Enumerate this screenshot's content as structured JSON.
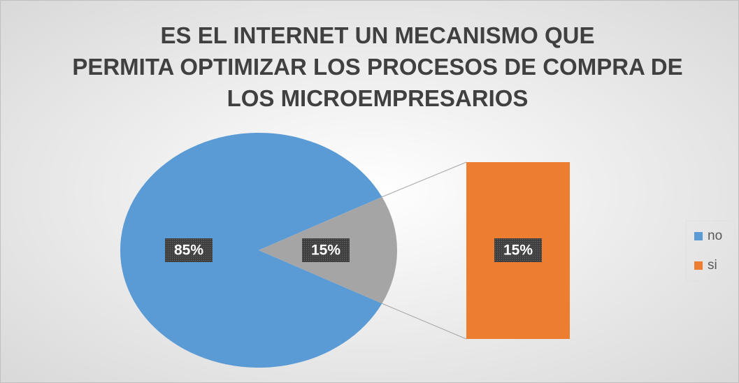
{
  "chart_data": {
    "type": "pie",
    "title": "ES EL INTERNET UN MECANISMO QUE PERMITA OPTIMIZAR LOS PROCESOS DE COMPRA DE LOS MICROEMPRESARIOS",
    "categories": [
      "no",
      "si"
    ],
    "values": [
      85,
      15
    ],
    "value_labels": [
      "85%",
      "15%"
    ],
    "colors": [
      "#5b9bd5",
      "#ed7d31"
    ],
    "legend": "right"
  }
}
